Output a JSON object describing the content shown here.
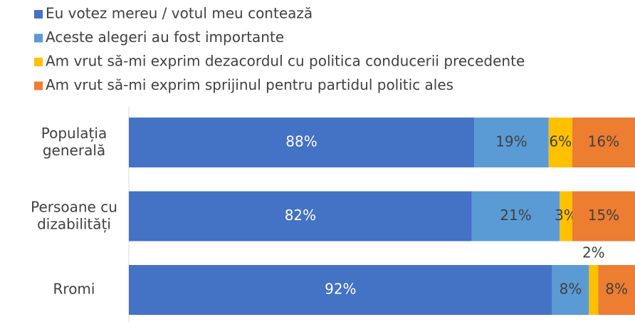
{
  "chart_data": {
    "type": "bar",
    "orientation": "horizontal",
    "stacking": "percent",
    "categories": [
      "Populația\ngenerală",
      "Persoane cu\ndizabilități",
      "Rromi"
    ],
    "series": [
      {
        "name": "Eu votez mereu / votul meu contează",
        "color": "#4472c4",
        "values": [
          88,
          82,
          92
        ],
        "value_labels": [
          "88%",
          "82%",
          "92%"
        ]
      },
      {
        "name": "Aceste alegeri au fost importante",
        "color": "#5b9bd5",
        "values": [
          19,
          21,
          8
        ],
        "value_labels": [
          "19%",
          "21%",
          "8%"
        ]
      },
      {
        "name": "Am vrut să-mi exprim dezacordul cu politica conducerii precedente",
        "color": "#ffc000",
        "values": [
          6,
          3,
          2
        ],
        "value_labels": [
          "6%",
          "3%",
          "2%"
        ]
      },
      {
        "name": "Am vrut să-mi exprim sprijinul pentru partidul politic ales",
        "color": "#ed7d31",
        "values": [
          16,
          15,
          8
        ],
        "value_labels": [
          "16%",
          "15%",
          "8%"
        ]
      }
    ],
    "legend": "top-left"
  }
}
